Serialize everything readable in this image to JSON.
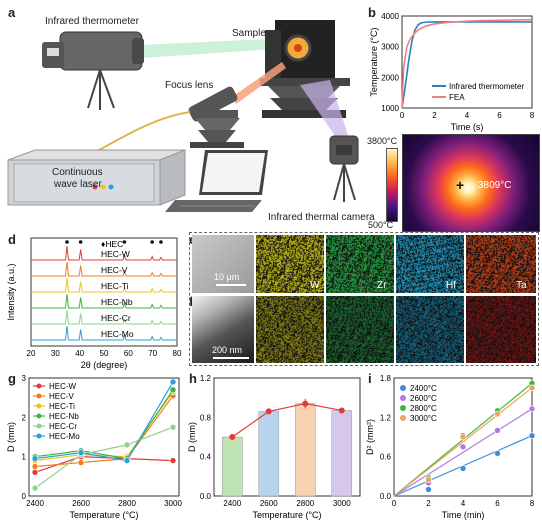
{
  "panel_letters": [
    "a",
    "b",
    "c",
    "d",
    "e",
    "f",
    "g",
    "h",
    "i"
  ],
  "panel_a": {
    "infrared_thermometer": "Infrared thermometer",
    "sample": "Sample",
    "focus_lens": "Focus lens",
    "laser_line1": "Continuous",
    "laser_line2": "wave laser",
    "thermal_camera": "Infrared thermal camera"
  },
  "panel_b": {
    "chart_data": {
      "type": "line",
      "xlabel": "Time (s)",
      "ylabel": "Temperature (°C)",
      "xlim": [
        0,
        8
      ],
      "ylim": [
        1000,
        4000
      ],
      "xticks": [
        0,
        2,
        4,
        6,
        8
      ],
      "yticks": [
        1000,
        2000,
        3000,
        4000
      ],
      "legend_position": "bottom-right",
      "series": [
        {
          "name": "Infrared thermometer",
          "color": "#2f7fc1",
          "x": [
            0,
            0.2,
            0.4,
            0.6,
            0.8,
            1.0,
            1.2,
            1.5,
            2,
            3,
            4,
            5,
            6,
            7,
            8
          ],
          "y": [
            1000,
            1700,
            2500,
            3150,
            3550,
            3720,
            3780,
            3800,
            3805,
            3805,
            3805,
            3805,
            3805,
            3805,
            3805
          ]
        },
        {
          "name": "FEA",
          "color": "#f08080",
          "x": [
            0,
            0.1,
            0.3,
            0.5,
            0.8,
            1.0,
            1.5,
            2,
            3,
            4,
            5,
            6,
            7,
            8
          ],
          "y": [
            1000,
            2300,
            3000,
            3250,
            3450,
            3550,
            3680,
            3740,
            3800,
            3830,
            3850,
            3860,
            3870,
            3880
          ]
        }
      ]
    }
  },
  "panel_c": {
    "scale_max": "3800°C",
    "scale_min": "500°C",
    "spot_label": "3809°C"
  },
  "panel_d": {
    "chart_data": {
      "type": "line",
      "xlabel": "2θ (degree)",
      "ylabel": "Intensity (a.u.)",
      "xlim": [
        20,
        80
      ],
      "xticks": [
        20,
        30,
        40,
        50,
        60,
        70,
        80
      ],
      "legend_title": "HEC",
      "peaks_2theta": [
        34.8,
        40.4,
        58.4,
        69.8,
        73.4
      ],
      "series": [
        {
          "name": "HEC-W",
          "color": "#e23a3a"
        },
        {
          "name": "HEC-V",
          "color": "#f07d1a"
        },
        {
          "name": "HEC-Ti",
          "color": "#f0c419"
        },
        {
          "name": "HEC-Nb",
          "color": "#3fb53f"
        },
        {
          "name": "HEC-Cr",
          "color": "#8fd28f"
        },
        {
          "name": "HEC-Mo",
          "color": "#2d9fd8"
        }
      ]
    }
  },
  "panel_e": {
    "scale_bar": "10 μm",
    "maps": [
      {
        "label": "W",
        "color": "#c9c21a"
      },
      {
        "label": "Zr",
        "color": "#2aa845"
      },
      {
        "label": "Hf",
        "color": "#1f9cc6"
      },
      {
        "label": "Ta",
        "color": "#c8441b"
      }
    ]
  },
  "panel_f": {
    "scale_bar": "200 nm",
    "maps": [
      {
        "color": "#8f8a12"
      },
      {
        "color": "#1c6e33"
      },
      {
        "color": "#156a89"
      },
      {
        "color": "#7e1414"
      }
    ]
  },
  "panel_g": {
    "chart_data": {
      "type": "line",
      "xlabel": "Temperature (°C)",
      "ylabel": "D (mm)",
      "x": [
        2400,
        2600,
        2800,
        3000
      ],
      "ylim": [
        0,
        3
      ],
      "yticks": [
        0,
        1,
        2,
        3
      ],
      "series": [
        {
          "name": "HEC-W",
          "color": "#e23a3a",
          "values": [
            0.6,
            1.0,
            0.95,
            0.9
          ]
        },
        {
          "name": "HEC-V",
          "color": "#f07d1a",
          "values": [
            0.75,
            0.85,
            0.95,
            2.55
          ]
        },
        {
          "name": "HEC-Ti",
          "color": "#f0c419",
          "values": [
            0.9,
            1.05,
            1.0,
            2.65
          ]
        },
        {
          "name": "HEC-Nb",
          "color": "#3fb53f",
          "values": [
            1.0,
            1.15,
            0.95,
            2.7
          ]
        },
        {
          "name": "HEC-Cr",
          "color": "#8fd28f",
          "values": [
            0.2,
            1.05,
            1.3,
            1.75
          ]
        },
        {
          "name": "HEC-Mo",
          "color": "#2d9fd8",
          "values": [
            0.95,
            1.1,
            0.9,
            2.9
          ]
        }
      ]
    }
  },
  "panel_h": {
    "chart_data": {
      "type": "bar",
      "xlabel": "Temperature (°C)",
      "ylabel": "D (mm)",
      "categories": [
        "2400",
        "2600",
        "2800",
        "3000"
      ],
      "values": [
        0.6,
        0.86,
        0.94,
        0.87
      ],
      "errors": [
        0.02,
        0.03,
        0.05,
        0.03
      ],
      "ylim": [
        0,
        1.2
      ],
      "yticks": [
        0,
        0.4,
        0.8,
        1.2
      ],
      "bar_colors": [
        "#bfe3b5",
        "#b9d3ef",
        "#f6d2b3",
        "#d5c8ea"
      ],
      "line_color": "#e23a3a"
    }
  },
  "panel_i": {
    "chart_data": {
      "type": "scatter",
      "xlabel": "Time (min)",
      "ylabel": "D² (mm²)",
      "xlim": [
        0,
        8
      ],
      "ylim": [
        0,
        1.8
      ],
      "xticks": [
        0,
        2,
        4,
        6,
        8
      ],
      "yticks": [
        0,
        0.6,
        1.2,
        1.8
      ],
      "x": [
        2,
        4,
        6,
        8
      ],
      "legend_position": "top-left",
      "series": [
        {
          "name": "2400°C",
          "color": "#3b8fd8",
          "values": [
            0.1,
            0.42,
            0.65,
            0.92
          ]
        },
        {
          "name": "2600°C",
          "color": "#b07ae0",
          "values": [
            0.2,
            0.75,
            1.0,
            1.33
          ]
        },
        {
          "name": "2800°C",
          "color": "#3fb53f",
          "values": [
            0.28,
            0.92,
            1.3,
            1.72
          ]
        },
        {
          "name": "3000°C",
          "color": "#f0a35a",
          "values": [
            0.25,
            0.9,
            1.25,
            1.65
          ]
        }
      ]
    }
  }
}
